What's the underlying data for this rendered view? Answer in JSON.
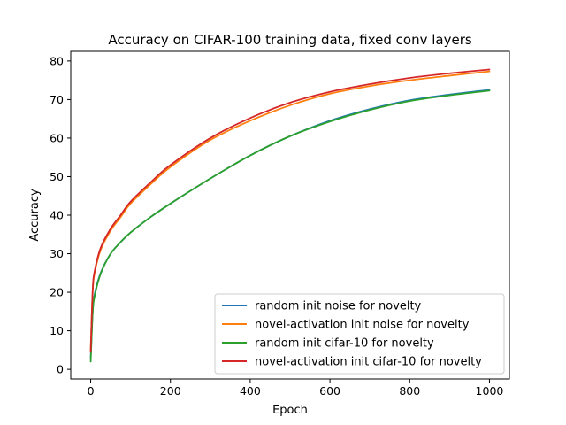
{
  "chart_data": {
    "type": "line",
    "title": "Accuracy on CIFAR-100 training data, fixed conv layers",
    "xlabel": "Epoch",
    "ylabel": "Accuracy",
    "xlim": [
      -50,
      1050
    ],
    "ylim": [
      -2.5,
      82.5
    ],
    "xticks": [
      0,
      200,
      400,
      600,
      800,
      1000
    ],
    "yticks": [
      0,
      10,
      20,
      30,
      40,
      50,
      60,
      70,
      80
    ],
    "grid": false,
    "legend_position": "lower-right",
    "x": [
      0,
      5,
      10,
      25,
      50,
      75,
      100,
      150,
      200,
      300,
      400,
      500,
      600,
      700,
      800,
      900,
      1000
    ],
    "series": [
      {
        "name": "random init noise for novelty",
        "color": "#1f77b4",
        "values": [
          3.0,
          15.0,
          19.5,
          25.0,
          30.0,
          33.0,
          35.5,
          39.5,
          43.0,
          49.5,
          55.5,
          60.5,
          64.5,
          67.5,
          69.8,
          71.3,
          72.5
        ]
      },
      {
        "name": "novel-activation init noise for novelty",
        "color": "#ff7f0e",
        "values": [
          5.0,
          20.0,
          25.0,
          31.0,
          36.0,
          39.5,
          43.0,
          48.0,
          52.5,
          59.5,
          64.5,
          68.5,
          71.5,
          73.5,
          75.0,
          76.2,
          77.3
        ]
      },
      {
        "name": "random init cifar-10 for novelty",
        "color": "#2ca02c",
        "values": [
          2.0,
          14.5,
          19.0,
          24.8,
          30.0,
          33.0,
          35.5,
          39.5,
          43.0,
          49.5,
          55.5,
          60.5,
          64.3,
          67.3,
          69.6,
          71.1,
          72.3
        ]
      },
      {
        "name": "novel-activation init cifar-10 for novelty",
        "color": "#d62728",
        "values": [
          4.5,
          20.5,
          25.5,
          31.5,
          36.5,
          40.0,
          43.5,
          48.5,
          53.0,
          60.0,
          65.2,
          69.2,
          72.0,
          74.0,
          75.6,
          76.8,
          77.8
        ]
      }
    ]
  }
}
